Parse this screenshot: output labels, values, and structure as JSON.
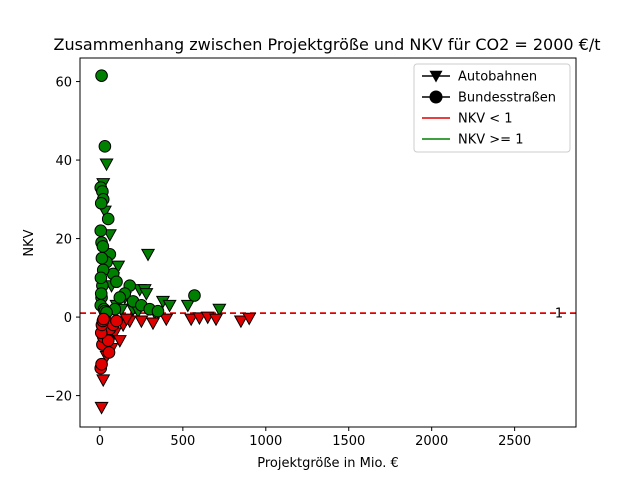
{
  "chart_data": {
    "type": "scatter",
    "title": "Zusammenhang zwischen Projektgröße und NKV für CO2 = 2000 €/t",
    "xlabel": "Projektgröße in Mio. €",
    "ylabel": "NKV",
    "xlim": [
      -120,
      2870
    ],
    "ylim": [
      -28,
      66
    ],
    "xticks": [
      0,
      500,
      1000,
      1500,
      2000,
      2500
    ],
    "yticks": [
      -20,
      0,
      20,
      40,
      60
    ],
    "ytick_labels": [
      "−20",
      "0",
      "20",
      "40",
      "60"
    ],
    "reference_line": {
      "y": 1,
      "label": "1",
      "color": "#e00000",
      "style": "dashed"
    },
    "colors": {
      "below": "#e00000",
      "above": "#008000"
    },
    "legend": {
      "position": "top-right",
      "entries": [
        {
          "label": "Autobahnen",
          "marker": "triangle-down",
          "color": "#000000"
        },
        {
          "label": "Bundesstraßen",
          "marker": "circle",
          "color": "#000000"
        },
        {
          "label": "NKV < 1",
          "marker": "line",
          "color": "#e00000"
        },
        {
          "label": "NKV >= 1",
          "marker": "line",
          "color": "#008000"
        }
      ]
    },
    "series": [
      {
        "name": "Autobahnen",
        "marker": "triangle-down",
        "points": [
          [
            20,
            34
          ],
          [
            40,
            39
          ],
          [
            30,
            27
          ],
          [
            60,
            21
          ],
          [
            50,
            15
          ],
          [
            110,
            13
          ],
          [
            80,
            10
          ],
          [
            70,
            8
          ],
          [
            150,
            5
          ],
          [
            240,
            7
          ],
          [
            270,
            7
          ],
          [
            280,
            6
          ],
          [
            290,
            16
          ],
          [
            380,
            4
          ],
          [
            420,
            3
          ],
          [
            530,
            3
          ],
          [
            720,
            2
          ],
          [
            100,
            3
          ],
          [
            130,
            2
          ],
          [
            200,
            2
          ],
          [
            230,
            1.5
          ],
          [
            330,
            1.2
          ],
          [
            20,
            -16
          ],
          [
            10,
            -23
          ],
          [
            60,
            -5
          ],
          [
            90,
            -4
          ],
          [
            120,
            -6
          ],
          [
            140,
            -2
          ],
          [
            180,
            -1
          ],
          [
            250,
            -1
          ],
          [
            320,
            -1.5
          ],
          [
            400,
            -0.5
          ],
          [
            550,
            -0.5
          ],
          [
            600,
            -0.2
          ],
          [
            650,
            0
          ],
          [
            700,
            -0.5
          ],
          [
            850,
            -1
          ],
          [
            900,
            -0.3
          ],
          [
            40,
            -10
          ],
          [
            70,
            -8
          ],
          [
            30,
            -2
          ],
          [
            160,
            -0.5
          ]
        ]
      },
      {
        "name": "Bundesstraßen",
        "marker": "circle",
        "points": [
          [
            10,
            61.5
          ],
          [
            30,
            43.5
          ],
          [
            5,
            33
          ],
          [
            15,
            32
          ],
          [
            20,
            30
          ],
          [
            8,
            29
          ],
          [
            50,
            25
          ],
          [
            5,
            22
          ],
          [
            10,
            19
          ],
          [
            60,
            16
          ],
          [
            40,
            14
          ],
          [
            80,
            11
          ],
          [
            100,
            9
          ],
          [
            180,
            8
          ],
          [
            150,
            6
          ],
          [
            120,
            5
          ],
          [
            200,
            4
          ],
          [
            250,
            3
          ],
          [
            570,
            5.5
          ],
          [
            300,
            2
          ],
          [
            350,
            1.5
          ],
          [
            90,
            2
          ],
          [
            20,
            12
          ],
          [
            15,
            8
          ],
          [
            10,
            5
          ],
          [
            5,
            3
          ],
          [
            25,
            2
          ],
          [
            30,
            1.5
          ],
          [
            40,
            1.2
          ],
          [
            12,
            15
          ],
          [
            18,
            18
          ],
          [
            6,
            10
          ],
          [
            8,
            6
          ],
          [
            5,
            -13
          ],
          [
            10,
            -12
          ],
          [
            15,
            -7
          ],
          [
            20,
            -5
          ],
          [
            25,
            -3
          ],
          [
            30,
            -2
          ],
          [
            35,
            -1
          ],
          [
            40,
            -4
          ],
          [
            50,
            -6
          ],
          [
            55,
            -9
          ],
          [
            60,
            -3
          ],
          [
            80,
            -2
          ],
          [
            100,
            -1
          ],
          [
            8,
            -4
          ],
          [
            12,
            -2
          ],
          [
            18,
            -1
          ],
          [
            22,
            -0.5
          ]
        ]
      }
    ]
  }
}
